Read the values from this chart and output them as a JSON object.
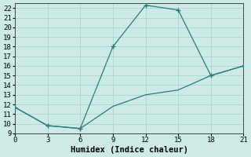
{
  "xlabel": "Humidex (Indice chaleur)",
  "line1_x": [
    0,
    3,
    6,
    9,
    12,
    15,
    18,
    21
  ],
  "line1_y": [
    11.7,
    9.8,
    9.5,
    18,
    22.3,
    21.8,
    15,
    16
  ],
  "line2_x": [
    0,
    3,
    6,
    9,
    12,
    15,
    18,
    21
  ],
  "line2_y": [
    11.7,
    9.8,
    9.5,
    11.8,
    13,
    13.5,
    15,
    16
  ],
  "marker_x": [
    3,
    6,
    9,
    12,
    15,
    18
  ],
  "marker1_y": [
    9.8,
    9.5,
    18,
    22.3,
    21.8,
    15
  ],
  "line_color": "#2a7d70",
  "bg_color": "#ceeae6",
  "grid_color": "#b0d8d2",
  "xlim": [
    0,
    21
  ],
  "ylim": [
    9,
    22.5
  ],
  "xticks": [
    0,
    3,
    6,
    9,
    12,
    15,
    18,
    21
  ],
  "yticks": [
    9,
    10,
    11,
    12,
    13,
    14,
    15,
    16,
    17,
    18,
    19,
    20,
    21,
    22
  ],
  "tick_fontsize": 6.5,
  "label_fontsize": 7.5
}
